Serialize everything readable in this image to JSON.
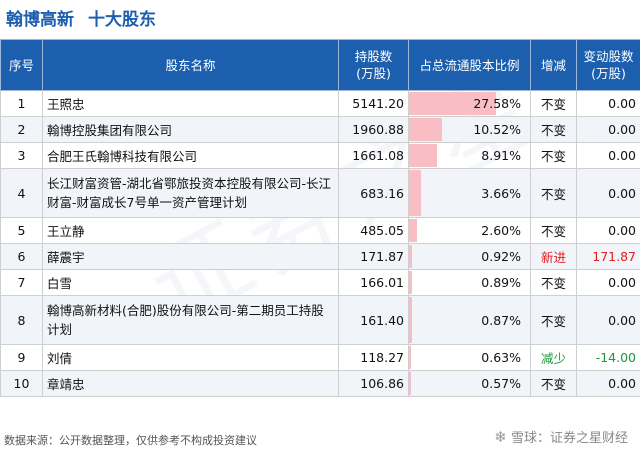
{
  "title": {
    "company": "翰博高新",
    "subtitle": "十大股东"
  },
  "table": {
    "headers": [
      "序号",
      "股东名称",
      "持股数\n(万股)",
      "占总流通股本比例",
      "增减",
      "变动股数\n(万股)"
    ],
    "rows": [
      {
        "idx": "1",
        "name": "王照忠",
        "shares": "5141.20",
        "ratio": "27.58%",
        "ratio_value": 27.58,
        "change": "不变",
        "delta": "0.00"
      },
      {
        "idx": "2",
        "name": "翰博控股集团有限公司",
        "shares": "1960.88",
        "ratio": "10.52%",
        "ratio_value": 10.52,
        "change": "不变",
        "delta": "0.00"
      },
      {
        "idx": "3",
        "name": "合肥王氏翰博科技有限公司",
        "shares": "1661.08",
        "ratio": "8.91%",
        "ratio_value": 8.91,
        "change": "不变",
        "delta": "0.00"
      },
      {
        "idx": "4",
        "name": "长江财富资管-湖北省鄂旅投资本控股有限公司-长江财富-财富成长7号单一资产管理计划",
        "shares": "683.16",
        "ratio": "3.66%",
        "ratio_value": 3.66,
        "change": "不变",
        "delta": "0.00",
        "tall": true
      },
      {
        "idx": "5",
        "name": "王立静",
        "shares": "485.05",
        "ratio": "2.60%",
        "ratio_value": 2.6,
        "change": "不变",
        "delta": "0.00"
      },
      {
        "idx": "6",
        "name": "薛震宇",
        "shares": "171.87",
        "ratio": "0.92%",
        "ratio_value": 0.92,
        "change": "新进",
        "delta": "171.87",
        "change_color": "#e02020"
      },
      {
        "idx": "7",
        "name": "白雪",
        "shares": "166.01",
        "ratio": "0.89%",
        "ratio_value": 0.89,
        "change": "不变",
        "delta": "0.00"
      },
      {
        "idx": "8",
        "name": "翰博高新材料(合肥)股份有限公司-第二期员工持股计划",
        "shares": "161.40",
        "ratio": "0.87%",
        "ratio_value": 0.87,
        "change": "不变",
        "delta": "0.00",
        "tall": true
      },
      {
        "idx": "9",
        "name": "刘倩",
        "shares": "118.27",
        "ratio": "0.63%",
        "ratio_value": 0.63,
        "change": "减少",
        "delta": "-14.00",
        "change_color": "#1a9a3a"
      },
      {
        "idx": "10",
        "name": "章靖忠",
        "shares": "106.86",
        "ratio": "0.57%",
        "ratio_value": 0.57,
        "change": "不变",
        "delta": "0.00"
      }
    ]
  },
  "footer": {
    "source": "数据来源：公开数据整理，仅供参考不构成投资建议"
  },
  "brand": {
    "text": "雪球：证券之星财经"
  },
  "watermark": "证券之星",
  "colors": {
    "header_bg": "#1c5fae",
    "bar": "#f8bec4",
    "increase": "#e02020",
    "decrease": "#1a9a3a"
  }
}
